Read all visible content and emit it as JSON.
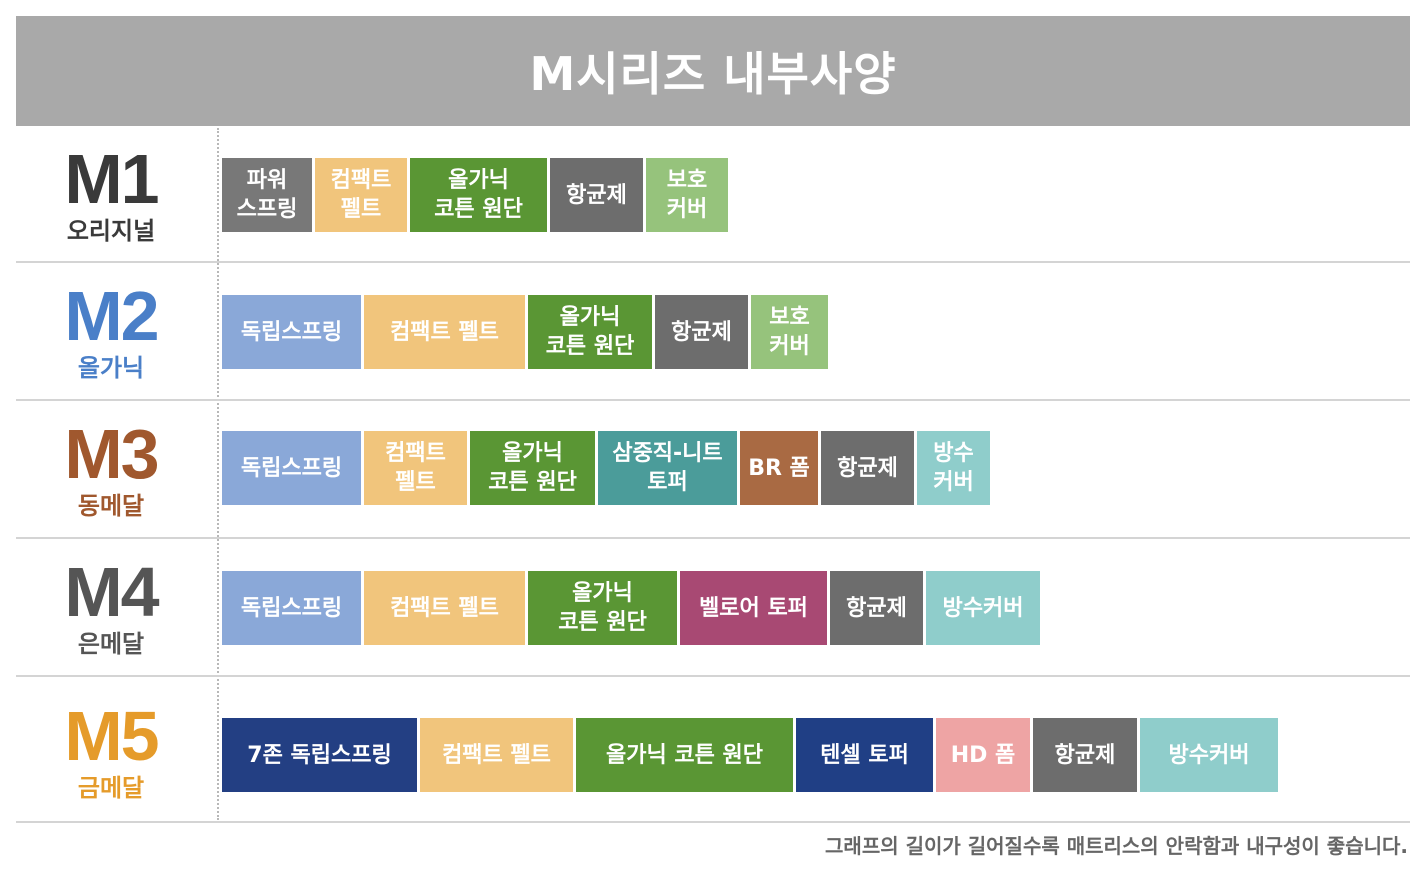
{
  "title": "M시리즈 내부사양",
  "colors": {
    "header_bg": "#a9a9a9",
    "spring_gray": "#787878",
    "spring_blue": "#8aa8d8",
    "spring_navy": "#233f83",
    "felt": "#f1c57c",
    "organic": "#5a9634",
    "antibacterial": "#6d6d6d",
    "cover_green": "#96c37c",
    "cover_teal": "#8fcdcb",
    "triple_knit": "#4b9c9a",
    "br_foam": "#a96a43",
    "velour": "#a84973",
    "tencel": "#203f85",
    "hd_foam": "#eea4a4"
  },
  "rows": [
    {
      "model": "M1",
      "subtitle": "오리지널",
      "color": "#3a3a3a",
      "segments": [
        {
          "label": "파워\n스프링",
          "color": "#787878",
          "width": 90
        },
        {
          "label": "컴팩트\n펠트",
          "color": "#f1c57c",
          "width": 92
        },
        {
          "label": "올가닉\n코튼 원단",
          "color": "#5a9634",
          "width": 137
        },
        {
          "label": "항균제",
          "color": "#6d6d6d",
          "width": 93
        },
        {
          "label": "보호\n커버",
          "color": "#96c37c",
          "width": 82
        }
      ]
    },
    {
      "model": "M2",
      "subtitle": "올가닉",
      "color": "#4a7fc8",
      "segments": [
        {
          "label": "독립스프링",
          "color": "#8aa8d8",
          "width": 139
        },
        {
          "label": "컴팩트 펠트",
          "color": "#f1c57c",
          "width": 161
        },
        {
          "label": "올가닉\n코튼 원단",
          "color": "#5a9634",
          "width": 124
        },
        {
          "label": "항균제",
          "color": "#6d6d6d",
          "width": 93
        },
        {
          "label": "보호\n커버",
          "color": "#96c37c",
          "width": 77
        }
      ]
    },
    {
      "model": "M3",
      "subtitle": "동메달",
      "color": "#a0582e",
      "segments": [
        {
          "label": "독립스프링",
          "color": "#8aa8d8",
          "width": 139
        },
        {
          "label": "컴팩트\n펠트",
          "color": "#f1c57c",
          "width": 103
        },
        {
          "label": "올가닉\n코튼 원단",
          "color": "#5a9634",
          "width": 125
        },
        {
          "label": "삼중직-니트\n토퍼",
          "color": "#4b9c9a",
          "width": 139
        },
        {
          "label": "BR 폼",
          "color": "#a96a43",
          "width": 78
        },
        {
          "label": "항균제",
          "color": "#6d6d6d",
          "width": 93
        },
        {
          "label": "방수\n커버",
          "color": "#8fcdcb",
          "width": 73
        }
      ]
    },
    {
      "model": "M4",
      "subtitle": "은메달",
      "color": "#555555",
      "segments": [
        {
          "label": "독립스프링",
          "color": "#8aa8d8",
          "width": 139
        },
        {
          "label": "컴팩트 펠트",
          "color": "#f1c57c",
          "width": 161
        },
        {
          "label": "올가닉\n코튼 원단",
          "color": "#5a9634",
          "width": 149
        },
        {
          "label": "벨로어 토퍼",
          "color": "#a84973",
          "width": 147
        },
        {
          "label": "항균제",
          "color": "#6d6d6d",
          "width": 93
        },
        {
          "label": "방수커버",
          "color": "#8fcdcb",
          "width": 114
        }
      ]
    },
    {
      "model": "M5",
      "subtitle": "금메달",
      "color": "#e59b2a",
      "segments": [
        {
          "label": "7존 독립스프링",
          "color": "#233f83",
          "width": 195
        },
        {
          "label": "컴팩트 펠트",
          "color": "#f1c57c",
          "width": 153
        },
        {
          "label": "올가닉 코튼 원단",
          "color": "#5a9634",
          "width": 217
        },
        {
          "label": "텐셀 토퍼",
          "color": "#203f85",
          "width": 137
        },
        {
          "label": "HD 폼",
          "color": "#eea4a4",
          "width": 94
        },
        {
          "label": "항균제",
          "color": "#6d6d6d",
          "width": 104
        },
        {
          "label": "방수커버",
          "color": "#8fcdcb",
          "width": 138
        }
      ]
    }
  ],
  "footnote": "그래프의 길이가 길어질수록 매트리스의 안락함과 내구성이 좋습니다."
}
